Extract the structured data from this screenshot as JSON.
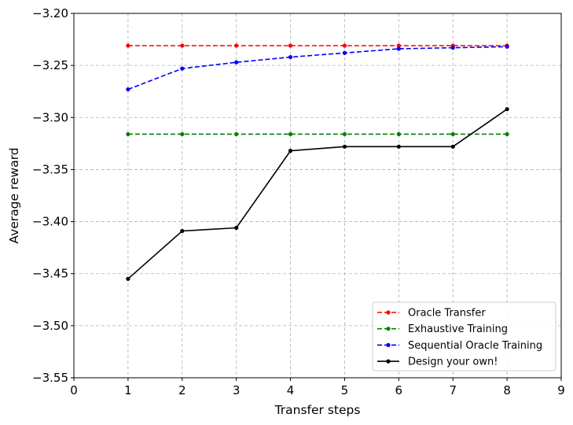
{
  "chart_data": {
    "type": "line",
    "xlabel": "Transfer steps",
    "ylabel": "Average reward",
    "xlim": [
      0,
      9
    ],
    "ylim": [
      -3.55,
      -3.2
    ],
    "x_ticks": [
      "0",
      "1",
      "2",
      "3",
      "4",
      "5",
      "6",
      "7",
      "8",
      "9"
    ],
    "y_ticks": [
      "−3.20",
      "−3.25",
      "−3.30",
      "−3.35",
      "−3.40",
      "−3.45",
      "−3.50",
      "−3.55"
    ],
    "grid": true,
    "legend_position": "lower-right",
    "x": [
      1,
      2,
      3,
      4,
      5,
      6,
      7,
      8
    ],
    "series": [
      {
        "name": "Oracle Transfer",
        "color": "#ff0000",
        "style": "dashed",
        "values": [
          -3.231,
          -3.231,
          -3.231,
          -3.231,
          -3.231,
          -3.231,
          -3.231,
          -3.231
        ]
      },
      {
        "name": "Exhaustive Training",
        "color": "#008000",
        "style": "dashed",
        "values": [
          -3.316,
          -3.316,
          -3.316,
          -3.316,
          -3.316,
          -3.316,
          -3.316,
          -3.316
        ]
      },
      {
        "name": "Sequential Oracle Training",
        "color": "#0000ff",
        "style": "dashed",
        "values": [
          -3.273,
          -3.253,
          -3.247,
          -3.242,
          -3.238,
          -3.234,
          -3.233,
          -3.232
        ]
      },
      {
        "name": "Design your own!",
        "color": "#000000",
        "style": "solid",
        "values": [
          -3.455,
          -3.409,
          -3.406,
          -3.332,
          -3.328,
          -3.328,
          -3.328,
          -3.292
        ]
      }
    ]
  }
}
